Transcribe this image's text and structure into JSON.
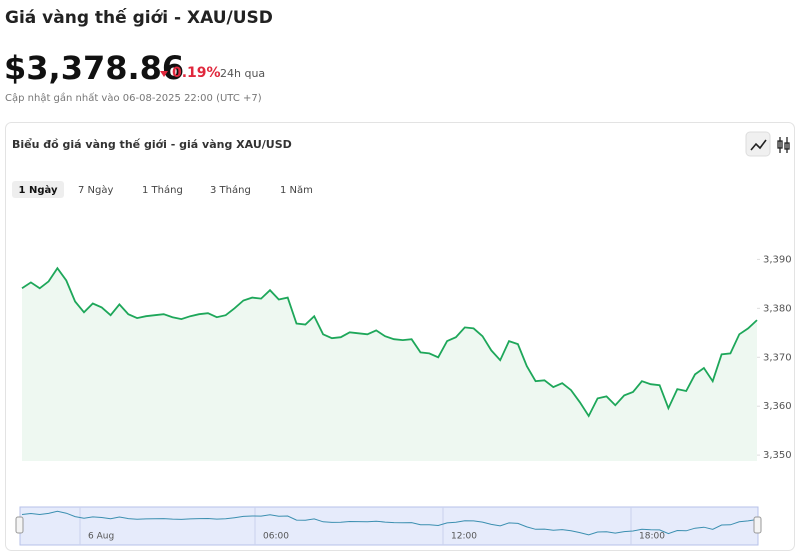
{
  "header": {
    "title": "Giá vàng thế giới - XAU/USD",
    "price": "$3,378.86",
    "change": "0.19%",
    "period": "24h qua",
    "updated": "Cập nhật gần nhất vào 06-08-2025 22:00 (UTC +7)"
  },
  "card": {
    "title": "Biểu đồ giá vàng thế giới - giá vàng XAU/USD",
    "tabs": [
      "1 Ngày",
      "7 Ngày",
      "1 Tháng",
      "3 Tháng",
      "1 Năm"
    ]
  },
  "chart_data": {
    "type": "area",
    "color": "#1ea75a",
    "fill": "#eef8f1",
    "values": [
      3384.1,
      3385.3,
      3384.1,
      3385.5,
      3388.2,
      3385.7,
      3381.4,
      3379.2,
      3381.0,
      3380.2,
      3378.6,
      3380.8,
      3378.8,
      3378.0,
      3378.4,
      3378.6,
      3378.8,
      3378.2,
      3377.8,
      3378.4,
      3378.8,
      3379.0,
      3378.2,
      3378.6,
      3380.0,
      3381.6,
      3382.2,
      3382.0,
      3383.7,
      3381.8,
      3382.2,
      3376.9,
      3376.7,
      3378.4,
      3374.7,
      3373.9,
      3374.1,
      3375.1,
      3374.9,
      3374.7,
      3375.5,
      3374.3,
      3373.7,
      3373.5,
      3373.7,
      3371.0,
      3370.8,
      3370.0,
      3373.3,
      3374.1,
      3376.1,
      3375.9,
      3374.3,
      3371.4,
      3369.4,
      3373.3,
      3372.7,
      3368.2,
      3365.1,
      3365.3,
      3363.9,
      3364.7,
      3363.3,
      3360.8,
      3358.0,
      3361.6,
      3362.0,
      3360.2,
      3362.2,
      3362.9,
      3365.1,
      3364.5,
      3364.3,
      3359.6,
      3363.5,
      3363.1,
      3366.5,
      3367.8,
      3365.1,
      3370.6,
      3370.8,
      3374.7,
      3375.9,
      3377.6
    ],
    "ylim": [
      3348.8,
      3400.1
    ],
    "yticks": [
      {
        "value": 3350,
        "label": "3,350"
      },
      {
        "value": 3360,
        "label": "3,360"
      },
      {
        "value": 3370,
        "label": "3,370"
      },
      {
        "value": 3380,
        "label": "3,380"
      },
      {
        "value": 3390,
        "label": "3,390"
      }
    ]
  },
  "navigator": {
    "labels": [
      "6 Aug",
      "06:00",
      "12:00",
      "18:00"
    ]
  }
}
